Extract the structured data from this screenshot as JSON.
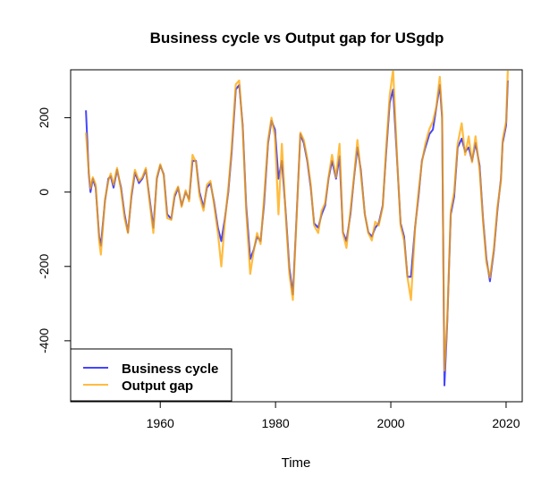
{
  "chart_data": {
    "type": "line",
    "title": "Business cycle vs Output gap for USgdp",
    "xlabel": "Time",
    "ylabel": "",
    "xlim": [
      1944.45,
      2022.8
    ],
    "ylim": [
      -564,
      329
    ],
    "xticks": [
      1960,
      1980,
      2000,
      2020
    ],
    "yticks": [
      -400,
      -200,
      0,
      200
    ],
    "grid": false,
    "legend": {
      "placement": "bottom-left",
      "entries": [
        "Business cycle",
        "Output gap"
      ]
    },
    "x": [
      1947.1,
      1947.6,
      1947.9,
      1948.3,
      1948.8,
      1949.4,
      1949.7,
      1950.4,
      1951.0,
      1951.4,
      1951.9,
      1952.5,
      1953.2,
      1953.8,
      1954.4,
      1955.0,
      1955.6,
      1956.3,
      1956.9,
      1957.5,
      1958.1,
      1958.8,
      1959.4,
      1960.0,
      1960.6,
      1961.2,
      1961.9,
      1962.5,
      1963.1,
      1963.7,
      1964.4,
      1965.0,
      1965.6,
      1966.2,
      1966.8,
      1967.5,
      1968.1,
      1968.7,
      1969.3,
      1970.0,
      1970.6,
      1971.2,
      1971.8,
      1972.4,
      1973.1,
      1973.7,
      1974.3,
      1974.9,
      1975.6,
      1976.2,
      1976.8,
      1977.4,
      1978.0,
      1978.7,
      1979.3,
      1979.9,
      1980.5,
      1981.1,
      1981.8,
      1982.4,
      1983.0,
      1983.6,
      1984.3,
      1984.9,
      1985.5,
      1986.1,
      1986.7,
      1987.4,
      1988.0,
      1988.6,
      1989.2,
      1989.8,
      1990.5,
      1991.1,
      1991.7,
      1992.3,
      1993.0,
      1993.6,
      1994.2,
      1994.8,
      1995.5,
      1996.1,
      1996.7,
      1997.3,
      1997.9,
      1998.6,
      1999.2,
      1999.8,
      2000.4,
      2001.1,
      2001.7,
      2002.3,
      2002.9,
      2003.5,
      2004.2,
      2004.8,
      2005.4,
      2006.0,
      2006.7,
      2007.3,
      2007.9,
      2008.5,
      2008.9,
      2009.3,
      2009.8,
      2010.4,
      2011.0,
      2011.6,
      2012.3,
      2012.9,
      2013.5,
      2014.1,
      2014.7,
      2015.4,
      2016.0,
      2016.6,
      2017.2,
      2017.9,
      2018.5,
      2019.1,
      2019.4,
      2020.0,
      2020.3
    ],
    "series": [
      {
        "name": "Business cycle",
        "color": "#4545ff",
        "values": [
          220,
          48,
          0,
          36,
          12,
          -120,
          -144,
          -24,
          36,
          43,
          12,
          60,
          12,
          -60,
          -108,
          -12,
          53,
          24,
          36,
          60,
          -12,
          -96,
          36,
          72,
          48,
          -60,
          -72,
          -12,
          12,
          -36,
          0,
          -19,
          84,
          84,
          0,
          -41,
          12,
          24,
          -24,
          -96,
          -132,
          -72,
          0,
          108,
          276,
          288,
          180,
          -36,
          -180,
          -156,
          -120,
          -132,
          -36,
          132,
          192,
          168,
          36,
          84,
          -60,
          -204,
          -276,
          -84,
          156,
          132,
          84,
          12,
          -84,
          -96,
          -60,
          -36,
          36,
          84,
          36,
          96,
          -108,
          -132,
          -60,
          36,
          120,
          60,
          -60,
          -108,
          -120,
          -96,
          -84,
          -36,
          108,
          240,
          276,
          84,
          -84,
          -120,
          -228,
          -228,
          -96,
          -12,
          84,
          120,
          156,
          168,
          228,
          288,
          200,
          -520,
          -348,
          -60,
          -12,
          120,
          144,
          108,
          120,
          84,
          132,
          72,
          -72,
          -180,
          -240,
          -156,
          -48,
          36,
          132,
          180,
          300
        ]
      },
      {
        "name": "Output gap",
        "color": "#ffa500",
        "values": [
          160,
          55,
          10,
          40,
          20,
          -130,
          -168,
          -20,
          30,
          50,
          20,
          65,
          5,
          -70,
          -110,
          -5,
          60,
          30,
          40,
          65,
          -20,
          -110,
          40,
          75,
          45,
          -70,
          -75,
          -5,
          15,
          -40,
          5,
          -25,
          100,
          80,
          -10,
          -50,
          20,
          30,
          -30,
          -110,
          -200,
          -80,
          10,
          120,
          290,
          300,
          170,
          -50,
          -220,
          -160,
          -110,
          -140,
          -20,
          140,
          200,
          150,
          -60,
          130,
          -70,
          -220,
          -290,
          -90,
          160,
          140,
          90,
          20,
          -90,
          -110,
          -50,
          -30,
          40,
          100,
          40,
          130,
          -110,
          -150,
          -50,
          40,
          140,
          50,
          -60,
          -110,
          -130,
          -80,
          -90,
          -40,
          120,
          260,
          330,
          90,
          -90,
          -130,
          -230,
          -290,
          -100,
          0,
          80,
          130,
          170,
          190,
          230,
          310,
          210,
          -480,
          -340,
          -50,
          0,
          130,
          185,
          100,
          150,
          80,
          150,
          60,
          -80,
          -190,
          -230,
          -150,
          -40,
          30,
          140,
          190,
          330
        ]
      }
    ]
  }
}
